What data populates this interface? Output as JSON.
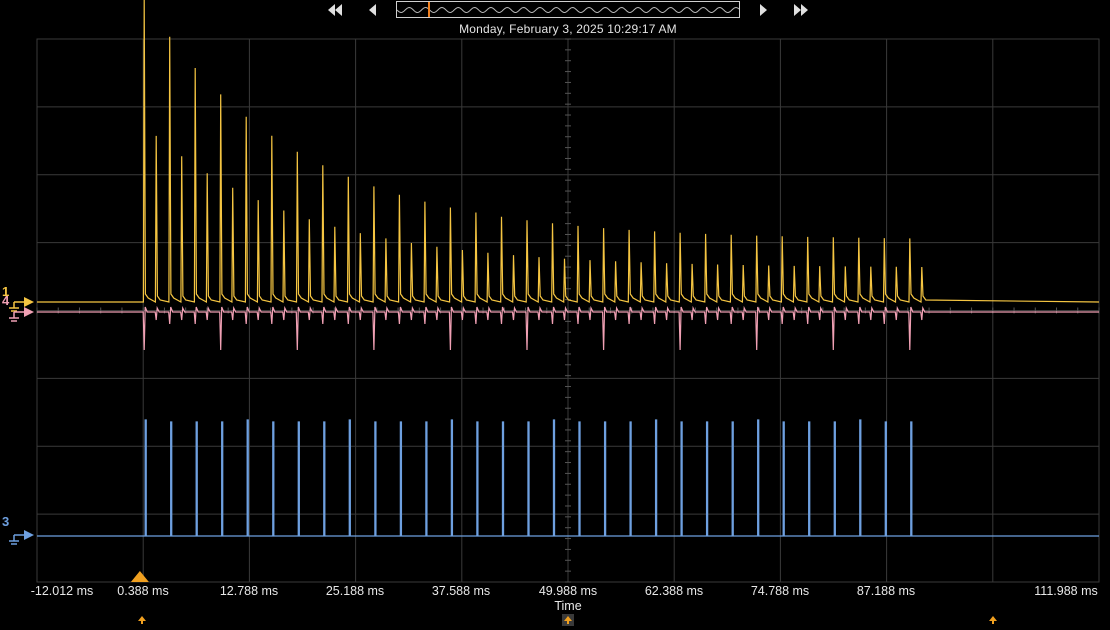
{
  "toolbar": {
    "timestamp": "Monday, February 3, 2025 10:29:17 AM",
    "buttons": [
      "skip-to-start",
      "step-back",
      "step-forward",
      "skip-to-end"
    ]
  },
  "channels": [
    {
      "number": "1",
      "color": "#f5c542"
    },
    {
      "number": "4",
      "color": "#f0a0b4"
    },
    {
      "number": "3",
      "color": "#6ea0e0"
    }
  ],
  "colors": {
    "background": "#000000",
    "grid": "#3a3a3a",
    "trigger": "#f0a020"
  },
  "chart_data": {
    "type": "line",
    "x_axis": {
      "title": "Time",
      "unit": "ms",
      "range": [
        -12.012,
        111.988
      ],
      "tick_labels": [
        "-12.012 ms",
        "0.388 ms",
        "12.788 ms",
        "25.188 ms",
        "37.588 ms",
        "49.988 ms",
        "62.388 ms",
        "74.788 ms",
        "87.188 ms",
        "111.988 ms"
      ]
    },
    "grid": true,
    "trigger_time_ms": 0,
    "series": [
      {
        "name": "1",
        "description_kind": "decaying pulse train",
        "pulse_start_ms": 0.5,
        "pulse_end_ms": 90.5
      },
      {
        "name": "4",
        "description_kind": "small bipolar spikes",
        "pulse_start_ms": 0.5,
        "pulse_end_ms": 90.5
      },
      {
        "name": "3",
        "description_kind": "narrow digital pulses",
        "pulse_start_ms": 0.5,
        "pulse_end_ms": 90.5
      }
    ]
  }
}
